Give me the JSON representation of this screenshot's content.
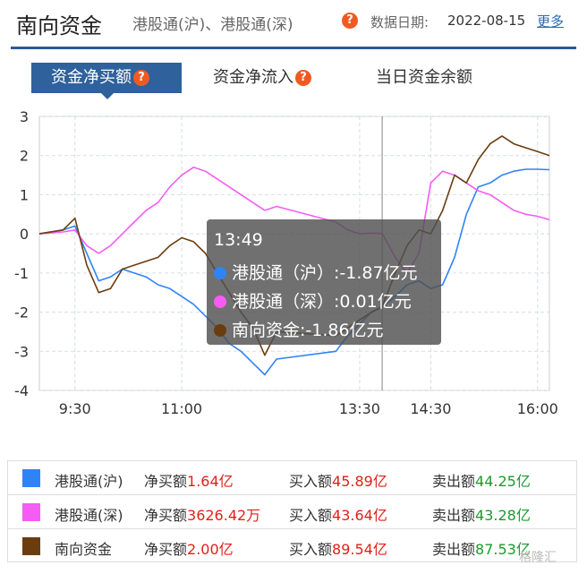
{
  "header": {
    "title": "南向资金",
    "subtitle": "港股通(沪)、港股通(深)",
    "help_glyph": "?",
    "date_label": "数据日期:",
    "date_value": "2022-08-15",
    "more_label": "更多"
  },
  "tabs": [
    {
      "label": "资金净买额",
      "active": true
    },
    {
      "label": "资金净流入",
      "active": false
    },
    {
      "label": "当日资金余额",
      "active": false
    }
  ],
  "tooltip": {
    "time": "13:49",
    "rows": [
      {
        "label": "港股通（沪）:-1.87亿元",
        "color": "#2f84f5"
      },
      {
        "label": "港股通（深）:0.01亿元",
        "color": "#f55cf5"
      },
      {
        "label": "南向资金:-1.86亿元",
        "color": "#6b3d0e"
      }
    ]
  },
  "legend": [
    {
      "name": "港股通(沪)",
      "color": "#2f84f5",
      "net_label": "净买额",
      "net_value": "1.64亿",
      "buy_label": "买入额",
      "buy_value": "45.89亿",
      "sell_label": "卖出额",
      "sell_value": "44.25亿"
    },
    {
      "name": "港股通(深)",
      "color": "#f55cf5",
      "net_label": "净买额",
      "net_value": "3626.42万",
      "buy_label": "买入额",
      "buy_value": "43.64亿",
      "sell_label": "卖出额",
      "sell_value": "43.28亿"
    },
    {
      "name": "南向资金",
      "color": "#6b3d0e",
      "net_label": "净买额",
      "net_value": "2.00亿",
      "buy_label": "买入额",
      "buy_value": "89.54亿",
      "sell_label": "卖出额",
      "sell_value": "87.53亿"
    }
  ],
  "watermark": "格隆汇",
  "chart_data": {
    "type": "line",
    "ylim": [
      -4,
      3
    ],
    "yticks": [
      3,
      2,
      1,
      0,
      -1,
      -2,
      -3,
      -4
    ],
    "xticks": [
      "9:30",
      "11:00",
      "13:30",
      "14:30",
      "16:00"
    ],
    "x_range": [
      "9:00",
      "16:10"
    ],
    "grid": true,
    "crosshair_x": "13:49",
    "x": [
      "9:00",
      "9:20",
      "9:30",
      "9:40",
      "9:50",
      "10:00",
      "10:10",
      "10:20",
      "10:30",
      "10:40",
      "10:50",
      "11:00",
      "11:10",
      "11:20",
      "11:30",
      "11:40",
      "11:50",
      "12:00",
      "12:10",
      "12:20",
      "13:10",
      "13:20",
      "13:30",
      "13:40",
      "13:49",
      "14:00",
      "14:10",
      "14:20",
      "14:30",
      "14:40",
      "14:50",
      "15:00",
      "15:10",
      "15:20",
      "15:30",
      "15:40",
      "15:50",
      "16:00",
      "16:10"
    ],
    "series": [
      {
        "name": "港股通(沪)",
        "color": "#2f84f5",
        "values": [
          0,
          0.1,
          0.2,
          -0.5,
          -1.2,
          -1.1,
          -0.9,
          -1.0,
          -1.1,
          -1.3,
          -1.4,
          -1.6,
          -1.8,
          -2.1,
          -2.4,
          -2.8,
          -3.0,
          -3.3,
          -3.6,
          -3.2,
          -3.0,
          -2.6,
          -2.3,
          -2.0,
          -1.87,
          -1.6,
          -1.3,
          -1.2,
          -1.4,
          -1.3,
          -0.6,
          0.5,
          1.2,
          1.3,
          1.5,
          1.6,
          1.65,
          1.65,
          1.64
        ]
      },
      {
        "name": "港股通(深)",
        "color": "#f55cf5",
        "values": [
          0,
          0.05,
          0.1,
          -0.3,
          -0.5,
          -0.3,
          0.0,
          0.3,
          0.6,
          0.8,
          1.2,
          1.5,
          1.7,
          1.6,
          1.4,
          1.2,
          1.0,
          0.8,
          0.6,
          0.7,
          0.3,
          0.1,
          0.0,
          0.02,
          0.01,
          -0.6,
          -1.0,
          -0.5,
          1.3,
          1.6,
          1.5,
          1.3,
          1.1,
          1.0,
          0.8,
          0.6,
          0.5,
          0.45,
          0.36
        ]
      },
      {
        "name": "南向资金",
        "color": "#6b3d0e",
        "values": [
          0,
          0.1,
          0.4,
          -0.8,
          -1.5,
          -1.4,
          -0.9,
          -0.8,
          -0.7,
          -0.6,
          -0.3,
          -0.1,
          -0.2,
          -0.5,
          -1.0,
          -1.5,
          -2.0,
          -2.4,
          -3.1,
          -2.5,
          -2.6,
          -2.4,
          -2.2,
          -2.0,
          -1.86,
          -1.0,
          -0.3,
          0.1,
          0.0,
          0.6,
          1.5,
          1.3,
          1.9,
          2.3,
          2.5,
          2.3,
          2.2,
          2.1,
          2.0
        ]
      }
    ]
  }
}
